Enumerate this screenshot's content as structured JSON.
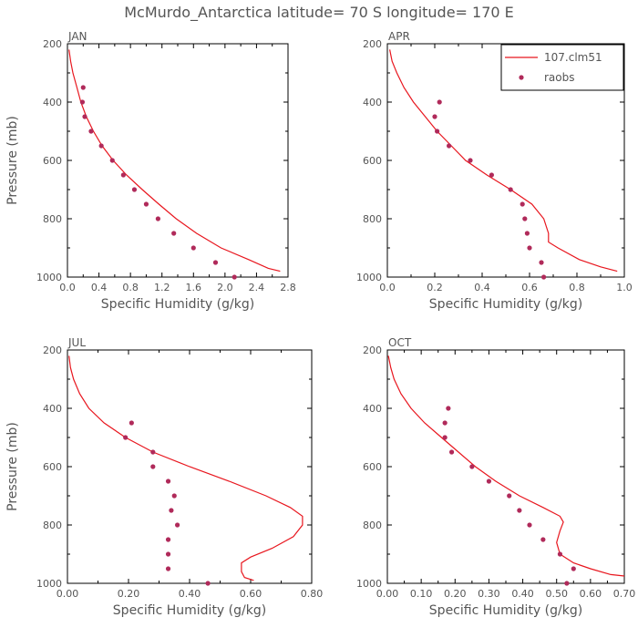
{
  "title": "McMurdo_Antarctica  latitude= 70 S longitude= 170 E",
  "colors": {
    "model": "#e8161e",
    "obs": "#b02a5a",
    "text": "#555555"
  },
  "chart_data": [
    {
      "type": "line",
      "panel": "JAN",
      "xlabel": "Specific Humidity (g/kg)",
      "ylabel": "Pressure (mb)",
      "xlim": [
        0,
        2.8
      ],
      "ylim": [
        200,
        1000
      ],
      "y_inverted": true,
      "xticks": [
        0.0,
        0.4,
        0.8,
        1.2,
        1.6,
        2.0,
        2.4,
        2.8
      ],
      "xtick_labels": [
        "0.0",
        "0.4",
        "0.8",
        "1.2",
        "1.6",
        "2.0",
        "2.4",
        "2.8"
      ],
      "yticks": [
        200,
        400,
        600,
        800,
        1000
      ],
      "ytick_labels": [
        "200",
        "400",
        "600",
        "800",
        "1000"
      ],
      "legend": null,
      "series": [
        {
          "name": "107.clm51",
          "kind": "line",
          "points": [
            [
              0.02,
              220
            ],
            [
              0.04,
              260
            ],
            [
              0.07,
              300
            ],
            [
              0.12,
              350
            ],
            [
              0.17,
              400
            ],
            [
              0.24,
              450
            ],
            [
              0.33,
              500
            ],
            [
              0.44,
              550
            ],
            [
              0.58,
              600
            ],
            [
              0.75,
              650
            ],
            [
              0.95,
              700
            ],
            [
              1.16,
              750
            ],
            [
              1.38,
              800
            ],
            [
              1.64,
              850
            ],
            [
              1.95,
              900
            ],
            [
              2.3,
              940
            ],
            [
              2.55,
              970
            ],
            [
              2.7,
              980
            ]
          ]
        },
        {
          "name": "raobs",
          "kind": "scatter",
          "points": [
            [
              0.2,
              350
            ],
            [
              0.19,
              400
            ],
            [
              0.22,
              450
            ],
            [
              0.3,
              500
            ],
            [
              0.43,
              550
            ],
            [
              0.57,
              600
            ],
            [
              0.71,
              650
            ],
            [
              0.85,
              700
            ],
            [
              1.0,
              750
            ],
            [
              1.15,
              800
            ],
            [
              1.35,
              850
            ],
            [
              1.6,
              900
            ],
            [
              1.88,
              950
            ],
            [
              2.12,
              1000
            ]
          ]
        }
      ]
    },
    {
      "type": "line",
      "panel": "APR",
      "xlabel": "Specific Humidity (g/kg)",
      "ylabel": "",
      "xlim": [
        0,
        1.0
      ],
      "ylim": [
        200,
        1000
      ],
      "y_inverted": true,
      "xticks": [
        0.0,
        0.2,
        0.4,
        0.6,
        0.8,
        1.0
      ],
      "xtick_labels": [
        "0.0",
        "0.2",
        "0.4",
        "0.6",
        "0.8",
        "1.0"
      ],
      "yticks": [
        200,
        400,
        600,
        800,
        1000
      ],
      "ytick_labels": [
        "200",
        "400",
        "600",
        "800",
        "1000"
      ],
      "legend": "top-right",
      "series": [
        {
          "name": "107.clm51",
          "kind": "line",
          "points": [
            [
              0.01,
              220
            ],
            [
              0.02,
              260
            ],
            [
              0.04,
              300
            ],
            [
              0.07,
              350
            ],
            [
              0.11,
              400
            ],
            [
              0.16,
              450
            ],
            [
              0.21,
              500
            ],
            [
              0.27,
              550
            ],
            [
              0.33,
              600
            ],
            [
              0.42,
              650
            ],
            [
              0.52,
              700
            ],
            [
              0.61,
              750
            ],
            [
              0.66,
              800
            ],
            [
              0.68,
              850
            ],
            [
              0.68,
              880
            ],
            [
              0.72,
              900
            ],
            [
              0.81,
              940
            ],
            [
              0.9,
              965
            ],
            [
              0.97,
              980
            ]
          ]
        },
        {
          "name": "raobs",
          "kind": "scatter",
          "points": [
            [
              0.22,
              400
            ],
            [
              0.2,
              450
            ],
            [
              0.21,
              500
            ],
            [
              0.26,
              550
            ],
            [
              0.35,
              600
            ],
            [
              0.44,
              650
            ],
            [
              0.52,
              700
            ],
            [
              0.57,
              750
            ],
            [
              0.58,
              800
            ],
            [
              0.59,
              850
            ],
            [
              0.6,
              900
            ],
            [
              0.65,
              950
            ],
            [
              0.66,
              1000
            ]
          ]
        }
      ]
    },
    {
      "type": "line",
      "panel": "JUL",
      "xlabel": "Specific Humidity (g/kg)",
      "ylabel": "Pressure (mb)",
      "xlim": [
        0,
        0.8
      ],
      "ylim": [
        200,
        1000
      ],
      "y_inverted": true,
      "xticks": [
        0.0,
        0.2,
        0.4,
        0.6,
        0.8
      ],
      "xtick_labels": [
        "0.00",
        "0.20",
        "0.40",
        "0.60",
        "0.80"
      ],
      "yticks": [
        200,
        400,
        600,
        800,
        1000
      ],
      "ytick_labels": [
        "200",
        "400",
        "600",
        "800",
        "1000"
      ],
      "legend": null,
      "series": [
        {
          "name": "107.clm51",
          "kind": "line",
          "points": [
            [
              0.005,
              220
            ],
            [
              0.01,
              260
            ],
            [
              0.02,
              300
            ],
            [
              0.04,
              350
            ],
            [
              0.07,
              400
            ],
            [
              0.12,
              450
            ],
            [
              0.19,
              500
            ],
            [
              0.28,
              550
            ],
            [
              0.4,
              600
            ],
            [
              0.53,
              650
            ],
            [
              0.65,
              700
            ],
            [
              0.73,
              740
            ],
            [
              0.77,
              770
            ],
            [
              0.77,
              800
            ],
            [
              0.74,
              840
            ],
            [
              0.67,
              880
            ],
            [
              0.6,
              910
            ],
            [
              0.57,
              930
            ],
            [
              0.57,
              960
            ],
            [
              0.58,
              980
            ],
            [
              0.61,
              990
            ]
          ]
        },
        {
          "name": "raobs",
          "kind": "scatter",
          "points": [
            [
              0.21,
              450
            ],
            [
              0.19,
              500
            ],
            [
              0.28,
              550
            ],
            [
              0.28,
              600
            ],
            [
              0.33,
              650
            ],
            [
              0.35,
              700
            ],
            [
              0.34,
              750
            ],
            [
              0.36,
              800
            ],
            [
              0.33,
              850
            ],
            [
              0.33,
              900
            ],
            [
              0.33,
              950
            ],
            [
              0.46,
              1000
            ]
          ]
        }
      ]
    },
    {
      "type": "line",
      "panel": "OCT",
      "xlabel": "Specific Humidity (g/kg)",
      "ylabel": "",
      "xlim": [
        0,
        0.7
      ],
      "ylim": [
        200,
        1000
      ],
      "y_inverted": true,
      "xticks": [
        0.0,
        0.1,
        0.2,
        0.3,
        0.4,
        0.5,
        0.6,
        0.7
      ],
      "xtick_labels": [
        "0.00",
        "0.10",
        "0.20",
        "0.30",
        "0.40",
        "0.50",
        "0.60",
        "0.70"
      ],
      "yticks": [
        200,
        400,
        600,
        800,
        1000
      ],
      "ytick_labels": [
        "200",
        "400",
        "600",
        "800",
        "1000"
      ],
      "legend": null,
      "series": [
        {
          "name": "107.clm51",
          "kind": "line",
          "points": [
            [
              0.003,
              220
            ],
            [
              0.01,
              260
            ],
            [
              0.02,
              300
            ],
            [
              0.04,
              350
            ],
            [
              0.07,
              400
            ],
            [
              0.11,
              450
            ],
            [
              0.16,
              500
            ],
            [
              0.21,
              550
            ],
            [
              0.26,
              600
            ],
            [
              0.32,
              650
            ],
            [
              0.39,
              700
            ],
            [
              0.46,
              740
            ],
            [
              0.51,
              770
            ],
            [
              0.52,
              790
            ],
            [
              0.51,
              820
            ],
            [
              0.5,
              860
            ],
            [
              0.51,
              900
            ],
            [
              0.55,
              930
            ],
            [
              0.6,
              950
            ],
            [
              0.66,
              970
            ],
            [
              0.7,
              975
            ]
          ]
        },
        {
          "name": "raobs",
          "kind": "scatter",
          "points": [
            [
              0.18,
              400
            ],
            [
              0.17,
              450
            ],
            [
              0.17,
              500
            ],
            [
              0.19,
              550
            ],
            [
              0.25,
              600
            ],
            [
              0.3,
              650
            ],
            [
              0.36,
              700
            ],
            [
              0.39,
              750
            ],
            [
              0.42,
              800
            ],
            [
              0.46,
              850
            ],
            [
              0.51,
              900
            ],
            [
              0.55,
              950
            ],
            [
              0.53,
              1000
            ]
          ]
        }
      ]
    }
  ]
}
